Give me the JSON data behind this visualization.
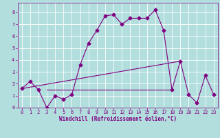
{
  "xlabel": "Windchill (Refroidissement éolien,°C)",
  "bg_color": "#b2dede",
  "line_color": "#800080",
  "xlim": [
    -0.5,
    23.5
  ],
  "ylim": [
    0,
    8.8
  ],
  "xticks": [
    0,
    1,
    2,
    3,
    4,
    5,
    6,
    7,
    8,
    9,
    10,
    11,
    12,
    13,
    14,
    15,
    16,
    17,
    18,
    19,
    20,
    21,
    22,
    23
  ],
  "yticks": [
    0,
    1,
    2,
    3,
    4,
    5,
    6,
    7,
    8
  ],
  "grid_color": "#ffffff",
  "line1_x": [
    0,
    1,
    2,
    3,
    4,
    5,
    6,
    7,
    8,
    9,
    10,
    11,
    12,
    13,
    14,
    15,
    16,
    17,
    18,
    19,
    20,
    21,
    22,
    23
  ],
  "line1_y": [
    1.6,
    2.2,
    1.5,
    0.0,
    1.0,
    0.7,
    1.1,
    3.6,
    5.4,
    6.5,
    7.7,
    7.8,
    7.0,
    7.5,
    7.5,
    7.5,
    8.2,
    6.5,
    1.5,
    3.9,
    1.1,
    0.4,
    2.7,
    1.1
  ],
  "line2_x": [
    0,
    19
  ],
  "line2_y": [
    1.6,
    3.9
  ],
  "line3_x": [
    3,
    18
  ],
  "line3_y": [
    1.5,
    1.5
  ]
}
